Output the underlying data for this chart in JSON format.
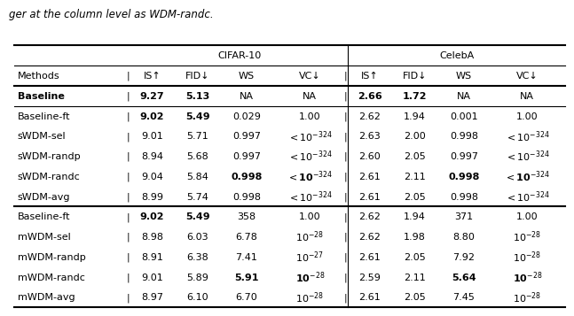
{
  "title_text": "ger at the column level as WDM-randc.",
  "cifar_label": "CIFAR-10",
  "celeba_label": "CelebA",
  "col_headers": [
    "Methods",
    "IS↑",
    "FID↓",
    "WS",
    "VC↓",
    "IS↑",
    "FID↓",
    "WS",
    "VC↓"
  ],
  "baseline_row": {
    "cells": [
      "Baseline",
      "9.27",
      "5.13",
      "NA",
      "NA",
      "2.66",
      "1.72",
      "NA",
      "NA"
    ],
    "bold": [
      true,
      true,
      true,
      false,
      false,
      true,
      true,
      false,
      false
    ]
  },
  "swdm_rows": [
    {
      "cells": [
        "Baseline-ft",
        "9.02",
        "5.49",
        "0.029",
        "1.00",
        "2.62",
        "1.94",
        "0.001",
        "1.00"
      ],
      "bold": [
        false,
        true,
        true,
        false,
        false,
        false,
        false,
        false,
        false
      ],
      "latex_vc": [
        false,
        false
      ]
    },
    {
      "cells": [
        "sWDM-sel",
        "9.01",
        "5.71",
        "0.997",
        "<10^{-324}",
        "2.63",
        "2.00",
        "0.998",
        "<10^{-324}"
      ],
      "bold": [
        false,
        false,
        false,
        false,
        false,
        false,
        false,
        false,
        false
      ],
      "latex_vc": [
        true,
        true
      ]
    },
    {
      "cells": [
        "sWDM-randp",
        "8.94",
        "5.68",
        "0.997",
        "<10^{-324}",
        "2.60",
        "2.05",
        "0.997",
        "<10^{-324}"
      ],
      "bold": [
        false,
        false,
        false,
        false,
        false,
        false,
        false,
        false,
        false
      ],
      "latex_vc": [
        true,
        true
      ]
    },
    {
      "cells": [
        "sWDM-randc",
        "9.04",
        "5.84",
        "0.998",
        "<10^{-324}",
        "2.61",
        "2.11",
        "0.998",
        "<10^{-324}"
      ],
      "bold": [
        false,
        false,
        false,
        true,
        true,
        false,
        false,
        true,
        true
      ],
      "latex_vc": [
        true,
        true
      ]
    },
    {
      "cells": [
        "sWDM-avg",
        "8.99",
        "5.74",
        "0.998",
        "<10^{-324}",
        "2.61",
        "2.05",
        "0.998",
        "<10^{-324}"
      ],
      "bold": [
        false,
        false,
        false,
        false,
        false,
        false,
        false,
        false,
        false
      ],
      "latex_vc": [
        true,
        true
      ]
    }
  ],
  "mwdm_rows": [
    {
      "cells": [
        "Baseline-ft",
        "9.02",
        "5.49",
        "358",
        "1.00",
        "2.62",
        "1.94",
        "371",
        "1.00"
      ],
      "bold": [
        false,
        true,
        true,
        false,
        false,
        false,
        false,
        false,
        false
      ],
      "latex_vc": [
        false,
        false
      ]
    },
    {
      "cells": [
        "mWDM-sel",
        "8.98",
        "6.03",
        "6.78",
        "10^{-28}",
        "2.62",
        "1.98",
        "8.80",
        "10^{-28}"
      ],
      "bold": [
        false,
        false,
        false,
        false,
        false,
        false,
        false,
        false,
        false
      ],
      "latex_vc": [
        true,
        true
      ]
    },
    {
      "cells": [
        "mWDM-randp",
        "8.91",
        "6.38",
        "7.41",
        "10^{-27}",
        "2.61",
        "2.05",
        "7.92",
        "10^{-28}"
      ],
      "bold": [
        false,
        false,
        false,
        false,
        false,
        false,
        false,
        false,
        false
      ],
      "latex_vc": [
        true,
        true
      ]
    },
    {
      "cells": [
        "mWDM-randc",
        "9.01",
        "5.89",
        "5.91",
        "10^{-28}",
        "2.59",
        "2.11",
        "5.64",
        "10^{-28}"
      ],
      "bold": [
        false,
        false,
        false,
        true,
        true,
        false,
        false,
        true,
        true
      ],
      "latex_vc": [
        true,
        true
      ]
    },
    {
      "cells": [
        "mWDM-avg",
        "8.97",
        "6.10",
        "6.70",
        "10^{-28}",
        "2.61",
        "2.05",
        "7.45",
        "10^{-28}"
      ],
      "bold": [
        false,
        false,
        false,
        false,
        false,
        false,
        false,
        false,
        false
      ],
      "latex_vc": [
        true,
        true
      ]
    }
  ],
  "raw_col_widths": [
    1.6,
    0.6,
    0.65,
    0.7,
    1.05,
    0.6,
    0.65,
    0.7,
    1.05
  ],
  "tl": 0.02,
  "tr": 0.99,
  "tt": 0.87,
  "rh": 0.054,
  "fs": 8.0
}
